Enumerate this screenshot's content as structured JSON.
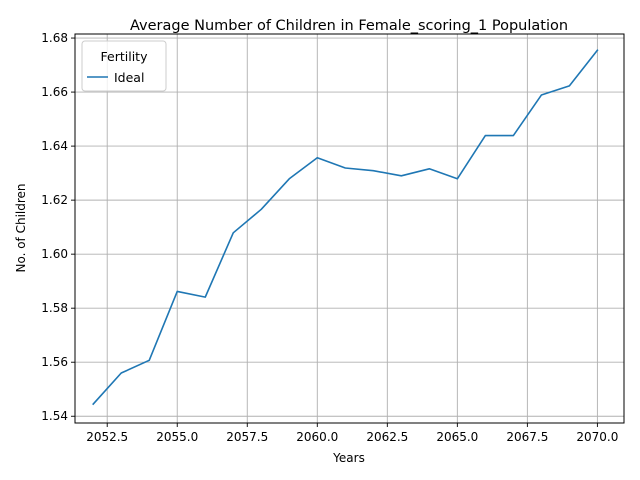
{
  "chart_data": {
    "type": "line",
    "title": "Average Number of Children in Female_scoring_1 Population",
    "xlabel": "Years",
    "ylabel": "No. of Children",
    "x": [
      2052,
      2053,
      2054,
      2055,
      2056,
      2057,
      2058,
      2059,
      2060,
      2061,
      2062,
      2063,
      2064,
      2065,
      2066,
      2067,
      2068,
      2069,
      2070
    ],
    "series": [
      {
        "name": "Ideal",
        "color": "#1f77b4",
        "values": [
          1.5445,
          1.556,
          1.5607,
          1.5862,
          1.5841,
          1.6079,
          1.6166,
          1.6279,
          1.6357,
          1.6319,
          1.6309,
          1.629,
          1.6316,
          1.6279,
          1.6439,
          1.6439,
          1.6589,
          1.6623,
          1.6755
        ]
      }
    ],
    "xlim": [
      2051.35,
      2070.95
    ],
    "ylim": [
      1.5375,
      1.6815
    ],
    "xticks": [
      2052.5,
      2055.0,
      2057.5,
      2060.0,
      2062.5,
      2065.0,
      2067.5,
      2070.0
    ],
    "xtick_labels": [
      "2052.5",
      "2055.0",
      "2057.5",
      "2060.0",
      "2062.5",
      "2065.0",
      "2067.5",
      "2070.0"
    ],
    "yticks": [
      1.54,
      1.56,
      1.58,
      1.6,
      1.62,
      1.64,
      1.66,
      1.68
    ],
    "ytick_labels": [
      "1.54",
      "1.56",
      "1.58",
      "1.60",
      "1.62",
      "1.64",
      "1.66",
      "1.68"
    ],
    "grid": true,
    "legend": {
      "title": "Fertility",
      "placement": "top-left"
    }
  }
}
